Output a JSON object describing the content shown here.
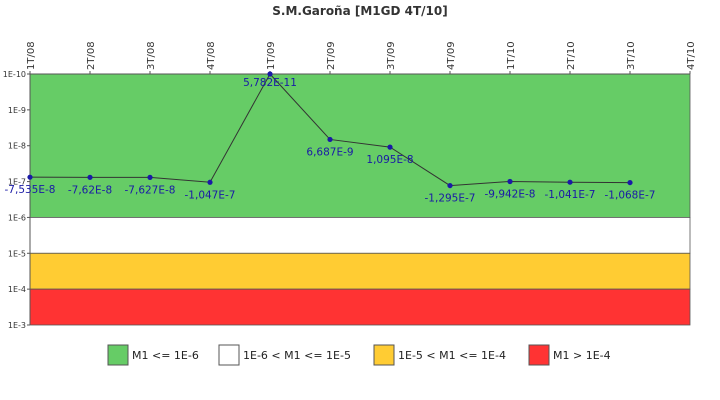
{
  "chart_data": {
    "type": "line",
    "title": "S.M.Garoña [M1GD 4T/10]",
    "xlabel": "",
    "ylabel": "",
    "y_scale": "log",
    "y_reversed": true,
    "categories": [
      "1T/08",
      "2T/08",
      "3T/08",
      "4T/08",
      "1T/09",
      "2T/09",
      "3T/09",
      "4T/09",
      "1T/10",
      "2T/10",
      "3T/10",
      "4T/10"
    ],
    "y_ticks": [
      {
        "value": 1e-10,
        "label": "1E-10"
      },
      {
        "value": 1e-09,
        "label": "1E-9"
      },
      {
        "value": 1e-08,
        "label": "1E-8"
      },
      {
        "value": 1e-07,
        "label": "1E-7"
      },
      {
        "value": 1e-06,
        "label": "1E-6"
      },
      {
        "value": 1e-05,
        "label": "1E-5"
      },
      {
        "value": 0.0001,
        "label": "1E-4"
      },
      {
        "value": 0.001,
        "label": "1E-3"
      }
    ],
    "ylim": [
      1e-10,
      0.001
    ],
    "series": [
      {
        "values": [
          -7.535e-08,
          -7.62e-08,
          -7.627e-08,
          -1.047e-07,
          5.782e-11,
          6.687e-09,
          1.095e-08,
          -1.295e-07,
          -9.942e-08,
          -1.041e-07,
          -1.068e-07,
          null
        ],
        "labels": [
          "-7,535E-8",
          "-7,62E-8",
          "-7,627E-8",
          "-1,047E-7",
          "5,782E-11",
          "6,687E-9",
          "1,095E-8",
          "-1,295E-7",
          "-9,942E-8",
          "-1,041E-7",
          "-1,068E-7",
          ""
        ]
      }
    ],
    "bands": [
      {
        "from": 1e-10,
        "to": 1e-06,
        "color": "#66cc66",
        "legend": "M1 <= 1E-6"
      },
      {
        "from": 1e-06,
        "to": 1e-05,
        "color": "#ffffff",
        "legend": "1E-6 < M1 <= 1E-5"
      },
      {
        "from": 1e-05,
        "to": 0.0001,
        "color": "#ffcc33",
        "legend": "1E-5 < M1 <= 1E-4"
      },
      {
        "from": 0.0001,
        "to": 0.001,
        "color": "#ff3333",
        "legend": "M1 > 1E-4"
      }
    ],
    "line_color": "#333333",
    "point_color": "#1a1aa6",
    "label_color": "#1a1aa6",
    "grid": false,
    "legend_position": "bottom"
  }
}
